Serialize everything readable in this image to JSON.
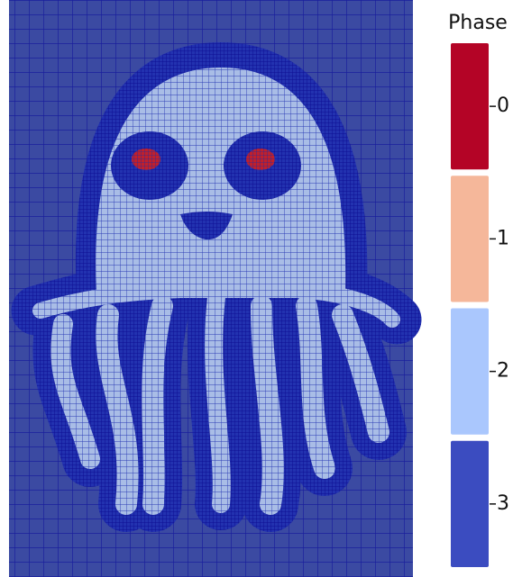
{
  "legend": {
    "title": "Phase",
    "entries": [
      {
        "label": "0",
        "color": "#b40426"
      },
      {
        "label": "1",
        "color": "#f5b79a"
      },
      {
        "label": "2",
        "color": "#aac7fd"
      },
      {
        "label": "3",
        "color": "#3b4cc0"
      }
    ]
  }
}
